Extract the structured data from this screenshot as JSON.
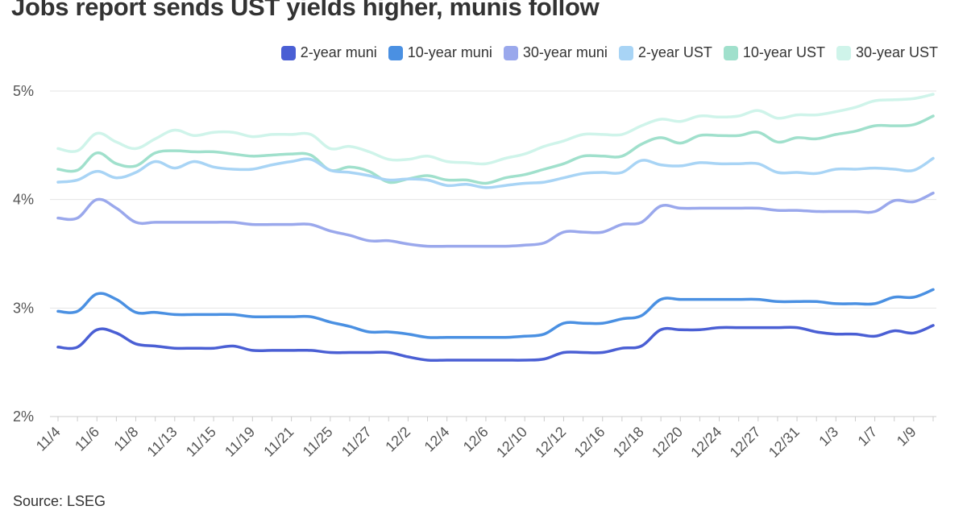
{
  "chart_data": {
    "type": "line",
    "title": "Jobs report sends UST yields higher, munis follow",
    "source": "Source: LSEG",
    "xlabel": "",
    "ylabel": "",
    "ylim": [
      2,
      5
    ],
    "yticks": [
      2,
      3,
      4,
      5
    ],
    "ytick_suffix": "%",
    "grid": true,
    "legend_position": "top-right",
    "x": [
      "11/4",
      "11/5",
      "11/6",
      "11/7",
      "11/8",
      "11/12",
      "11/13",
      "11/14",
      "11/15",
      "11/18",
      "11/19",
      "11/20",
      "11/21",
      "11/22",
      "11/25",
      "11/26",
      "11/27",
      "11/29",
      "12/2",
      "12/3",
      "12/4",
      "12/5",
      "12/6",
      "12/9",
      "12/10",
      "12/11",
      "12/12",
      "12/13",
      "12/16",
      "12/17",
      "12/18",
      "12/19",
      "12/20",
      "12/23",
      "12/24",
      "12/26",
      "12/27",
      "12/30",
      "12/31",
      "1/2",
      "1/3",
      "1/6",
      "1/7",
      "1/8",
      "1/9",
      "1/10"
    ],
    "tick_labels": [
      "11/4",
      "11/6",
      "11/8",
      "11/13",
      "11/15",
      "11/19",
      "11/21",
      "11/25",
      "11/27",
      "12/2",
      "12/4",
      "12/6",
      "12/10",
      "12/12",
      "12/16",
      "12/18",
      "12/20",
      "12/24",
      "12/27",
      "12/31",
      "1/3",
      "1/7",
      "1/9"
    ],
    "series": [
      {
        "name": "2-year muni",
        "color": "#4a5fd4",
        "values": [
          2.64,
          2.64,
          2.8,
          2.77,
          2.67,
          2.65,
          2.63,
          2.63,
          2.63,
          2.65,
          2.61,
          2.61,
          2.61,
          2.61,
          2.59,
          2.59,
          2.59,
          2.59,
          2.55,
          2.52,
          2.52,
          2.52,
          2.52,
          2.52,
          2.52,
          2.53,
          2.59,
          2.59,
          2.59,
          2.63,
          2.65,
          2.8,
          2.8,
          2.8,
          2.82,
          2.82,
          2.82,
          2.82,
          2.82,
          2.78,
          2.76,
          2.76,
          2.74,
          2.79,
          2.77,
          2.84
        ]
      },
      {
        "name": "10-year muni",
        "color": "#4a90e2",
        "values": [
          2.97,
          2.97,
          3.13,
          3.08,
          2.96,
          2.96,
          2.94,
          2.94,
          2.94,
          2.94,
          2.92,
          2.92,
          2.92,
          2.92,
          2.87,
          2.83,
          2.78,
          2.78,
          2.76,
          2.73,
          2.73,
          2.73,
          2.73,
          2.73,
          2.74,
          2.76,
          2.86,
          2.86,
          2.86,
          2.9,
          2.93,
          3.08,
          3.08,
          3.08,
          3.08,
          3.08,
          3.08,
          3.06,
          3.06,
          3.06,
          3.04,
          3.04,
          3.04,
          3.1,
          3.1,
          3.17
        ]
      },
      {
        "name": "30-year muni",
        "color": "#9aa8ec",
        "values": [
          3.83,
          3.83,
          4.0,
          3.92,
          3.79,
          3.79,
          3.79,
          3.79,
          3.79,
          3.79,
          3.77,
          3.77,
          3.77,
          3.77,
          3.71,
          3.67,
          3.62,
          3.62,
          3.59,
          3.57,
          3.57,
          3.57,
          3.57,
          3.57,
          3.58,
          3.6,
          3.7,
          3.7,
          3.7,
          3.77,
          3.79,
          3.94,
          3.92,
          3.92,
          3.92,
          3.92,
          3.92,
          3.9,
          3.9,
          3.89,
          3.89,
          3.89,
          3.89,
          3.99,
          3.98,
          4.06
        ]
      },
      {
        "name": "2-year UST",
        "color": "#a8d4f5",
        "values": [
          4.16,
          4.18,
          4.26,
          4.2,
          4.25,
          4.35,
          4.29,
          4.35,
          4.3,
          4.28,
          4.28,
          4.32,
          4.35,
          4.37,
          4.27,
          4.25,
          4.22,
          4.18,
          4.19,
          4.18,
          4.13,
          4.14,
          4.11,
          4.13,
          4.15,
          4.16,
          4.2,
          4.24,
          4.25,
          4.25,
          4.36,
          4.32,
          4.31,
          4.34,
          4.33,
          4.33,
          4.33,
          4.25,
          4.25,
          4.24,
          4.28,
          4.28,
          4.29,
          4.28,
          4.27,
          4.38
        ]
      },
      {
        "name": "10-year UST",
        "color": "#a0e0cc",
        "values": [
          4.28,
          4.27,
          4.43,
          4.33,
          4.31,
          4.43,
          4.45,
          4.44,
          4.44,
          4.42,
          4.4,
          4.41,
          4.42,
          4.41,
          4.27,
          4.3,
          4.26,
          4.16,
          4.19,
          4.22,
          4.18,
          4.18,
          4.15,
          4.2,
          4.23,
          4.28,
          4.33,
          4.4,
          4.4,
          4.4,
          4.51,
          4.57,
          4.52,
          4.59,
          4.59,
          4.59,
          4.62,
          4.53,
          4.57,
          4.56,
          4.6,
          4.63,
          4.68,
          4.68,
          4.69,
          4.77
        ]
      },
      {
        "name": "30-year UST",
        "color": "#cff4ea",
        "values": [
          4.47,
          4.45,
          4.61,
          4.53,
          4.47,
          4.56,
          4.64,
          4.59,
          4.62,
          4.62,
          4.58,
          4.6,
          4.6,
          4.6,
          4.47,
          4.49,
          4.44,
          4.37,
          4.37,
          4.4,
          4.35,
          4.34,
          4.33,
          4.38,
          4.42,
          4.49,
          4.54,
          4.6,
          4.6,
          4.6,
          4.68,
          4.74,
          4.72,
          4.77,
          4.76,
          4.77,
          4.82,
          4.75,
          4.78,
          4.78,
          4.81,
          4.85,
          4.91,
          4.92,
          4.93,
          4.97
        ]
      }
    ]
  }
}
